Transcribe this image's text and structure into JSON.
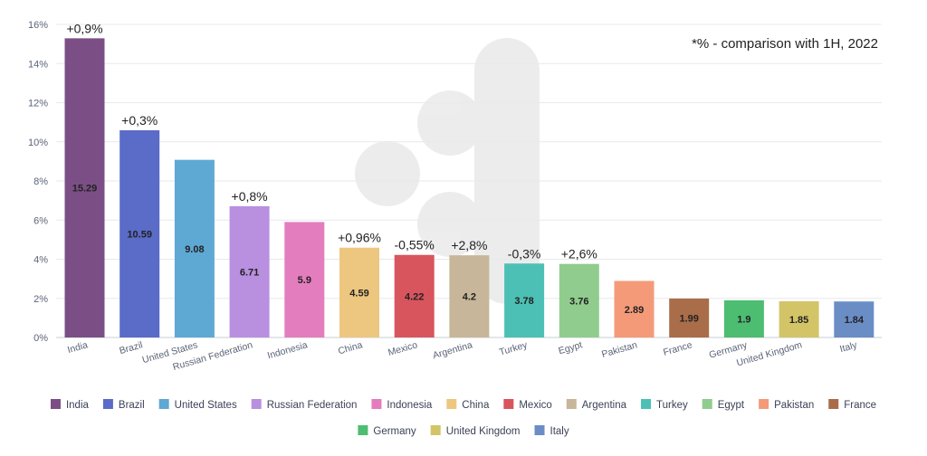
{
  "chart_data": {
    "type": "bar",
    "note": "*% - comparison with 1H, 2022",
    "y_ticks": [
      "0%",
      "2%",
      "4%",
      "6%",
      "8%",
      "10%",
      "12%",
      "14%",
      "16%"
    ],
    "ylim": [
      0,
      16
    ],
    "grid": true,
    "legend_position": "bottom",
    "categories": [
      "India",
      "Brazil",
      "United States",
      "Russian Federation",
      "Indonesia",
      "China",
      "Mexico",
      "Argentina",
      "Turkey",
      "Egypt",
      "Pakistan",
      "France",
      "Germany",
      "United Kingdom",
      "Italy"
    ],
    "values": [
      15.29,
      10.59,
      9.08,
      6.71,
      5.9,
      4.59,
      4.22,
      4.2,
      3.78,
      3.76,
      2.89,
      1.99,
      1.9,
      1.85,
      1.84
    ],
    "value_labels": [
      "15.29",
      "10.59",
      "9.08",
      "6.71",
      "5.9",
      "4.59",
      "4.22",
      "4.2",
      "3.78",
      "3.76",
      "2.89",
      "1.99",
      "1.9",
      "1.85",
      "1.84"
    ],
    "changes": [
      "+0,9%",
      "+0,3%",
      "",
      "+0,8%",
      "",
      "+0,96%",
      "-0,55%",
      "+2,8%",
      "-0,3%",
      "+2,6%",
      "",
      "",
      "",
      "",
      ""
    ],
    "colors": [
      "#7b4f86",
      "#5a6bc8",
      "#5ea8d4",
      "#b98fe0",
      "#e47dbd",
      "#edc67f",
      "#d8555e",
      "#c7b699",
      "#4cc0b4",
      "#90cc8e",
      "#f49a78",
      "#a96d4a",
      "#4dbd72",
      "#d3c468",
      "#6a8dc6"
    ]
  }
}
